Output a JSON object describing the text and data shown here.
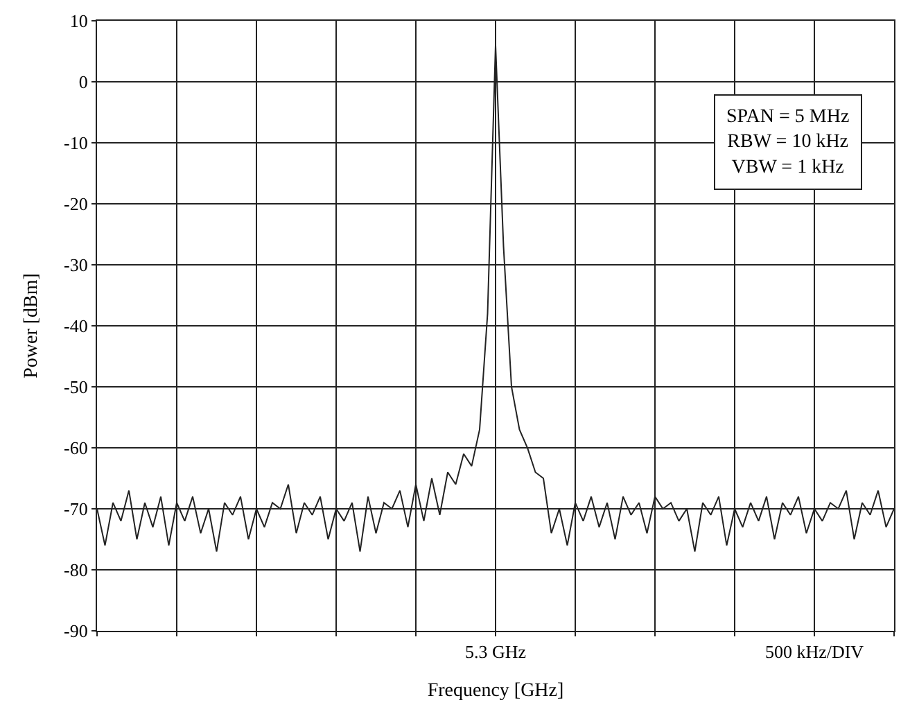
{
  "chart_data": {
    "type": "line",
    "xlabel": "Frequency [GHz]",
    "ylabel": "Power [dBm]",
    "annotations": [
      "SPAN = 5 MHz\nRBW = 10 kHz\nVBW = 1 kHz"
    ],
    "categories": [
      null,
      null,
      null,
      null,
      null,
      null,
      null,
      null,
      null,
      null,
      null,
      null,
      null,
      null,
      null,
      null,
      null,
      null,
      null,
      null,
      null,
      null,
      null,
      null,
      null,
      null,
      null,
      null,
      null,
      null,
      null,
      null,
      null,
      null,
      null,
      null,
      null,
      null,
      null,
      null,
      null,
      null,
      null,
      null,
      null,
      null,
      null,
      null,
      null,
      null,
      "5.3 GHz",
      null,
      null,
      null,
      null,
      null,
      null,
      null,
      null,
      null,
      null,
      null,
      null,
      null,
      null,
      null,
      null,
      null,
      null,
      null,
      null,
      null,
      null,
      null,
      null,
      null,
      null,
      null,
      null,
      null,
      null,
      null,
      null,
      null,
      null,
      null,
      null,
      null,
      null,
      null,
      "500 kHz/DIV",
      null,
      null,
      null,
      null,
      null,
      null,
      null,
      null,
      null,
      null
    ],
    "ylim": [
      -90,
      10
    ],
    "yticks": [
      -90,
      -80,
      -70,
      -60,
      -50,
      -40,
      -30,
      -20,
      -10,
      0,
      10
    ],
    "grid": true,
    "marker": "none",
    "line_style": "solid",
    "series": [
      {
        "color": "#222222",
        "values": [
          -70,
          -76,
          -69,
          -72,
          -67,
          -75,
          -69,
          -73,
          -68,
          -76,
          -69,
          -72,
          -68,
          -74,
          -70,
          -77,
          -69,
          -71,
          -68,
          -75,
          -70,
          -73,
          -69,
          -70,
          -66,
          -74,
          -69,
          -71,
          -68,
          -75,
          -70,
          -72,
          -69,
          -77,
          -68,
          -74,
          -69,
          -70,
          -67,
          -73,
          -66,
          -72,
          -65,
          -71,
          -64,
          -66,
          -61,
          -63,
          -57,
          -38,
          6,
          -27,
          -50,
          -57,
          -60,
          -64,
          -65,
          -74,
          -70,
          -76,
          -69,
          -72,
          -68,
          -73,
          -69,
          -75,
          -68,
          -71,
          -69,
          -74,
          -68,
          -70,
          -69,
          -72,
          -70,
          -77,
          -69,
          -71,
          -68,
          -76,
          -70,
          -73,
          -69,
          -72,
          -68,
          -75,
          -69,
          -71,
          -68,
          -74,
          -70,
          -72,
          -69,
          -70,
          -67,
          -75,
          -69,
          -71,
          -67,
          -73,
          -70
        ]
      }
    ]
  }
}
